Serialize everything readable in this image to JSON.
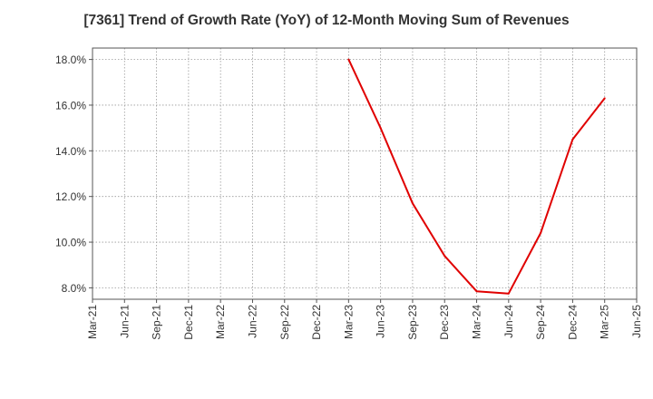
{
  "chart_data": {
    "type": "line",
    "title": "[7361]  Trend of Growth Rate (YoY) of 12-Month Moving Sum of Revenues",
    "xlabel": "",
    "ylabel": "",
    "x_ticks": [
      "Mar-21",
      "Jun-21",
      "Sep-21",
      "Dec-21",
      "Mar-22",
      "Jun-22",
      "Sep-22",
      "Dec-22",
      "Mar-23",
      "Jun-23",
      "Sep-23",
      "Dec-23",
      "Mar-24",
      "Jun-24",
      "Sep-24",
      "Dec-24",
      "Mar-25",
      "Jun-25"
    ],
    "y_ticks": [
      "8.0%",
      "10.0%",
      "12.0%",
      "14.0%",
      "16.0%",
      "18.0%"
    ],
    "y_tick_values": [
      8,
      10,
      12,
      14,
      16,
      18
    ],
    "ylim": [
      7.5,
      18.5
    ],
    "grid": true,
    "series": [
      {
        "color": "#e00000",
        "x": [
          "Mar-23",
          "Jun-23",
          "Sep-23",
          "Dec-23",
          "Mar-24",
          "Jun-24",
          "Sep-24",
          "Dec-24",
          "Mar-25"
        ],
        "values": [
          18.0,
          15.0,
          11.7,
          9.4,
          7.85,
          7.75,
          10.4,
          14.5,
          16.3
        ]
      }
    ]
  }
}
